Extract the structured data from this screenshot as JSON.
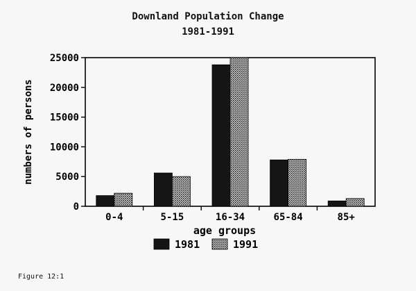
{
  "caption": "Figure 12:1",
  "chart_data": {
    "type": "bar",
    "title": "Downland Population Change",
    "subtitle": "1981-1991",
    "xlabel": "age groups",
    "ylabel": "numbers of persons",
    "categories": [
      "0-4",
      "5-15",
      "16-34",
      "65-84",
      "85+"
    ],
    "series": [
      {
        "name": "1981",
        "values": [
          1800,
          5600,
          23800,
          7800,
          900
        ],
        "pattern": "solid",
        "color": "#151515"
      },
      {
        "name": "1991",
        "values": [
          2200,
          5000,
          25000,
          7900,
          1300
        ],
        "pattern": "dotted",
        "color": "#555555"
      }
    ],
    "ylim": [
      0,
      25000
    ],
    "yticks": [
      "0",
      "5000",
      "10000",
      "15000",
      "20000",
      "25000"
    ],
    "grid": false,
    "legend_position": "bottom-center"
  }
}
